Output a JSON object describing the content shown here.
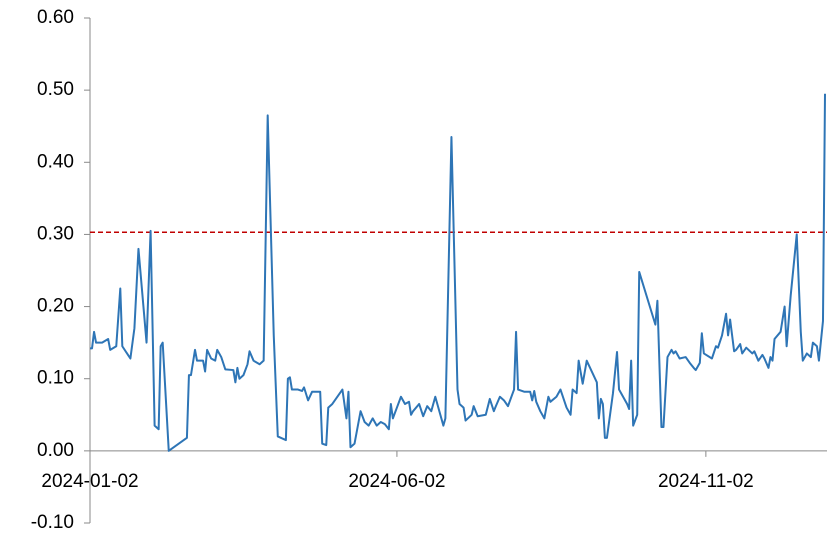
{
  "chart_data": {
    "type": "line",
    "color": "#2e75b6",
    "xlim": [
      "2024-01-02",
      "2024-12-31"
    ],
    "xticks": [
      "2024-01-02",
      "2024-06-02",
      "2024-11-02"
    ],
    "ylim": [
      -0.1,
      0.6
    ],
    "yticks": [
      {
        "value": -0.1,
        "label": "-0.10"
      },
      {
        "value": 0,
        "label": "0.00"
      },
      {
        "value": 0.1,
        "label": "0.10"
      },
      {
        "value": 0.2,
        "label": "0.20"
      },
      {
        "value": 0.3,
        "label": "0.30"
      },
      {
        "value": 0.4,
        "label": "0.40"
      },
      {
        "value": 0.5,
        "label": "0.50"
      },
      {
        "value": 0.6,
        "label": "0.60"
      }
    ],
    "reference_line": {
      "value": 0.303,
      "color": "#c00000",
      "style": "dashed"
    },
    "x": [
      "2024-01-02",
      "2024-01-03",
      "2024-01-04",
      "2024-01-05",
      "2024-01-08",
      "2024-01-11",
      "2024-01-12",
      "2024-01-15",
      "2024-01-17",
      "2024-01-18",
      "2024-01-22",
      "2024-01-24",
      "2024-01-26",
      "2024-01-30",
      "2024-02-01",
      "2024-02-03",
      "2024-02-05",
      "2024-02-06",
      "2024-02-07",
      "2024-02-10",
      "2024-02-19",
      "2024-02-20",
      "2024-02-21",
      "2024-02-23",
      "2024-02-24",
      "2024-02-27",
      "2024-02-28",
      "2024-02-29",
      "2024-03-02",
      "2024-03-04",
      "2024-03-05",
      "2024-03-07",
      "2024-03-09",
      "2024-03-13",
      "2024-03-14",
      "2024-03-15",
      "2024-03-16",
      "2024-03-18",
      "2024-03-20",
      "2024-03-21",
      "2024-03-23",
      "2024-03-26",
      "2024-03-28",
      "2024-03-30",
      "2024-04-02",
      "2024-04-04",
      "2024-04-08",
      "2024-04-09",
      "2024-04-10",
      "2024-04-11",
      "2024-04-14",
      "2024-04-16",
      "2024-04-17",
      "2024-04-19",
      "2024-04-21",
      "2024-04-25",
      "2024-04-26",
      "2024-04-28",
      "2024-04-29",
      "2024-05-01",
      "2024-05-06",
      "2024-05-08",
      "2024-05-09",
      "2024-05-10",
      "2024-05-12",
      "2024-05-14",
      "2024-05-15",
      "2024-05-17",
      "2024-05-19",
      "2024-05-21",
      "2024-05-23",
      "2024-05-25",
      "2024-05-27",
      "2024-05-29",
      "2024-05-30",
      "2024-05-31",
      "2024-06-02",
      "2024-06-04",
      "2024-06-06",
      "2024-06-08",
      "2024-06-09",
      "2024-06-10",
      "2024-06-13",
      "2024-06-15",
      "2024-06-17",
      "2024-06-19",
      "2024-06-21",
      "2024-06-24",
      "2024-06-25",
      "2024-06-26",
      "2024-06-29",
      "2024-07-02",
      "2024-07-03",
      "2024-07-05",
      "2024-07-06",
      "2024-07-09",
      "2024-07-10",
      "2024-07-12",
      "2024-07-16",
      "2024-07-18",
      "2024-07-20",
      "2024-07-21",
      "2024-07-23",
      "2024-07-25",
      "2024-07-27",
      "2024-07-30",
      "2024-07-31",
      "2024-08-01",
      "2024-08-04",
      "2024-08-07",
      "2024-08-08",
      "2024-08-09",
      "2024-08-10",
      "2024-08-12",
      "2024-08-14",
      "2024-08-16",
      "2024-08-17",
      "2024-08-20",
      "2024-08-22",
      "2024-08-25",
      "2024-08-27",
      "2024-08-28",
      "2024-08-30",
      "2024-08-31",
      "2024-09-02",
      "2024-09-04",
      "2024-09-09",
      "2024-09-10",
      "2024-09-11",
      "2024-09-12",
      "2024-09-13",
      "2024-09-14",
      "2024-09-17",
      "2024-09-19",
      "2024-09-20",
      "2024-09-24",
      "2024-09-25",
      "2024-09-26",
      "2024-09-27",
      "2024-09-29",
      "2024-09-30",
      "2024-10-08",
      "2024-10-09",
      "2024-10-11",
      "2024-10-12",
      "2024-10-14",
      "2024-10-16",
      "2024-10-17",
      "2024-10-18",
      "2024-10-20",
      "2024-10-23",
      "2024-10-25",
      "2024-10-27",
      "2024-10-28",
      "2024-10-30",
      "2024-10-31",
      "2024-11-01",
      "2024-11-05",
      "2024-11-07",
      "2024-11-08",
      "2024-11-10",
      "2024-11-12",
      "2024-11-13",
      "2024-11-14",
      "2024-11-16",
      "2024-11-17",
      "2024-11-19",
      "2024-11-20",
      "2024-11-22",
      "2024-11-25",
      "2024-11-26",
      "2024-11-28",
      "2024-11-30",
      "2024-12-01",
      "2024-12-03",
      "2024-12-04",
      "2024-12-05",
      "2024-12-06",
      "2024-12-09",
      "2024-12-11",
      "2024-12-12",
      "2024-12-14",
      "2024-12-17",
      "2024-12-19",
      "2024-12-20",
      "2024-12-22",
      "2024-12-24",
      "2024-12-25",
      "2024-12-27",
      "2024-12-28",
      "2024-12-30",
      "2024-12-31"
    ],
    "values": [
      0.142,
      0.142,
      0.165,
      0.15,
      0.15,
      0.155,
      0.14,
      0.145,
      0.225,
      0.145,
      0.128,
      0.17,
      0.28,
      0.15,
      0.305,
      0.035,
      0.03,
      0.145,
      0.15,
      0.0,
      0.018,
      0.105,
      0.105,
      0.14,
      0.125,
      0.125,
      0.11,
      0.14,
      0.128,
      0.125,
      0.14,
      0.13,
      0.113,
      0.112,
      0.095,
      0.115,
      0.1,
      0.105,
      0.12,
      0.138,
      0.125,
      0.12,
      0.125,
      0.465,
      0.16,
      0.02,
      0.015,
      0.1,
      0.102,
      0.085,
      0.085,
      0.083,
      0.088,
      0.07,
      0.082,
      0.082,
      0.01,
      0.008,
      0.06,
      0.065,
      0.085,
      0.045,
      0.082,
      0.005,
      0.01,
      0.04,
      0.055,
      0.04,
      0.035,
      0.045,
      0.035,
      0.04,
      0.037,
      0.03,
      0.065,
      0.045,
      0.06,
      0.075,
      0.065,
      0.068,
      0.05,
      0.055,
      0.065,
      0.048,
      0.062,
      0.055,
      0.075,
      0.045,
      0.035,
      0.045,
      0.435,
      0.085,
      0.065,
      0.06,
      0.042,
      0.05,
      0.062,
      0.048,
      0.05,
      0.072,
      0.055,
      0.062,
      0.075,
      0.07,
      0.062,
      0.085,
      0.165,
      0.085,
      0.082,
      0.082,
      0.07,
      0.083,
      0.068,
      0.055,
      0.045,
      0.075,
      0.068,
      0.075,
      0.085,
      0.06,
      0.05,
      0.085,
      0.08,
      0.125,
      0.093,
      0.125,
      0.095,
      0.045,
      0.072,
      0.065,
      0.018,
      0.018,
      0.08,
      0.137,
      0.085,
      0.065,
      0.058,
      0.125,
      0.035,
      0.05,
      0.248,
      0.175,
      0.208,
      0.033,
      0.033,
      0.13,
      0.14,
      0.135,
      0.138,
      0.128,
      0.13,
      0.122,
      0.115,
      0.112,
      0.122,
      0.163,
      0.135,
      0.128,
      0.145,
      0.143,
      0.16,
      0.19,
      0.16,
      0.182,
      0.138,
      0.14,
      0.148,
      0.135,
      0.143,
      0.135,
      0.138,
      0.125,
      0.133,
      0.128,
      0.115,
      0.13,
      0.125,
      0.155,
      0.165,
      0.2,
      0.145,
      0.215,
      0.3,
      0.165,
      0.125,
      0.135,
      0.13,
      0.15,
      0.145,
      0.125,
      0.18,
      0.495
    ]
  }
}
